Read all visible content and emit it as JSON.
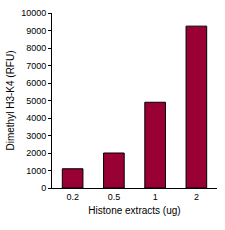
{
  "chart_data": {
    "type": "bar",
    "categories": [
      "0.2",
      "0.5",
      "1",
      "2"
    ],
    "values": [
      1100,
      2000,
      4900,
      9250
    ],
    "color": "#990033",
    "xlabel": "Histone extracts (ug)",
    "ylabel": "Dimethyl H3-K4 (RFU)",
    "ylim": [
      0,
      10000
    ],
    "yticks": [
      0,
      1000,
      2000,
      3000,
      4000,
      5000,
      6000,
      7000,
      8000,
      9000,
      10000
    ],
    "grid": false
  }
}
